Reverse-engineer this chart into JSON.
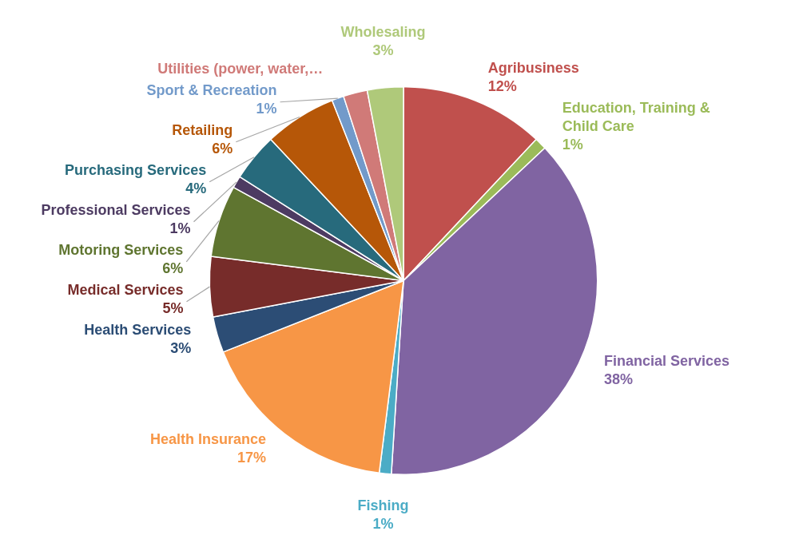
{
  "chart_data": {
    "type": "pie",
    "categories": [
      "Agribusiness",
      "Education, Training & Child Care",
      "Financial Services",
      "Fishing",
      "Health Insurance",
      "Health Services",
      "Medical Services",
      "Motoring Services",
      "Professional Services",
      "Purchasing Services",
      "Retailing",
      "Sport & Recreation",
      "Utilities (power, water,…",
      "Wholesaling"
    ],
    "values": [
      12,
      1,
      38,
      1,
      17,
      3,
      5,
      6,
      1,
      4,
      6,
      1,
      2,
      3
    ],
    "colors": [
      "#c0504d",
      "#9bbb59",
      "#8064a2",
      "#4bacc6",
      "#f79646",
      "#2c4d75",
      "#772c2a",
      "#5f7530",
      "#4d3b62",
      "#276a7c",
      "#b65708",
      "#729aca",
      "#d07a78",
      "#afc97a"
    ],
    "value_labels": [
      "12%",
      "1%",
      "38%",
      "1%",
      "17%",
      "3%",
      "5%",
      "6%",
      "1%",
      "4%",
      "6%",
      "1%",
      null,
      "3%"
    ],
    "legend": false
  }
}
